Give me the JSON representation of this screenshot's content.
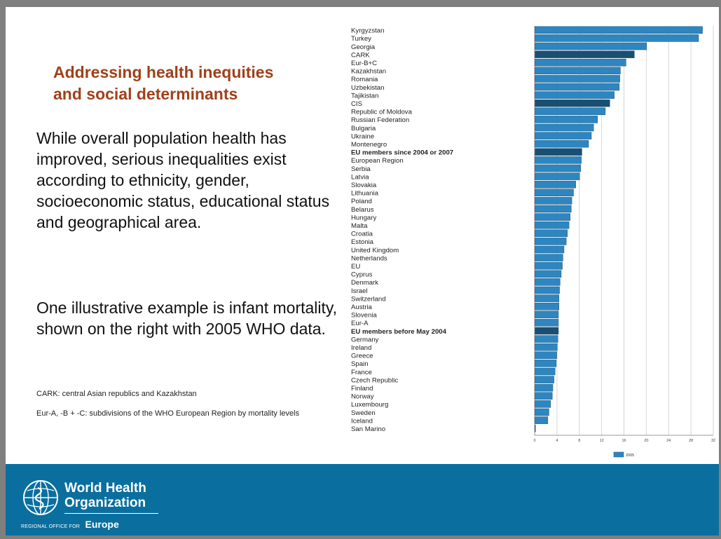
{
  "slide": {
    "title_lines": [
      "Addressing health inequities",
      "and social determinants"
    ],
    "paragraph1": "While overall population health has improved, serious inequalities exist according to ethnicity, gender, socioeconomic status, educational status and geographical area.",
    "paragraph2": "One illustrative example is infant mortality, shown on the right with 2005 WHO data.",
    "note1": "CARK: central Asian republics and Kazakhstan",
    "note2": "Eur-A, -B + -C: subdivisions of the WHO European Region by mortality levels"
  },
  "footer": {
    "org_line1": "World Health",
    "org_line2": "Organization",
    "region_small": "REGIONAL OFFICE FOR",
    "region_big": "Europe"
  },
  "colors": {
    "title": "#a0401b",
    "bar": "#2e86c1",
    "bar_aggregate": "#1b4f72",
    "footer": "#0a6f9e"
  },
  "chart_data": {
    "type": "bar",
    "orientation": "horizontal",
    "xlim": [
      0,
      32
    ],
    "x_ticks": [
      "0",
      "4",
      "8",
      "12",
      "16",
      "20",
      "24",
      "28",
      "32"
    ],
    "grid": true,
    "legend": {
      "position": "bottom",
      "entries": [
        "2005"
      ]
    },
    "categories": [
      "Kyrgyzstan",
      "Turkey",
      "Georgia",
      "CARK",
      "Eur-B+C",
      "Kazakhstan",
      "Romania",
      "Uzbekistan",
      "Tajikistan",
      "CIS",
      "Republic of Moldova",
      "Russian Federation",
      "Bulgaria",
      "Ukraine",
      "Montenegro",
      "EU members since 2004 or 2007",
      "European Region",
      "Serbia",
      "Latvia",
      "Slovakia",
      "Lithuania",
      "Poland",
      "Belarus",
      "Hungary",
      "Malta",
      "Croatia",
      "Estonia",
      "United Kingdom",
      "Netherlands",
      "EU",
      "Cyprus",
      "Denmark",
      "Israel",
      "Switzerland",
      "Austria",
      "Slovenia",
      "Eur-A",
      "EU members before May 2004",
      "Germany",
      "Ireland",
      "Greece",
      "Spain",
      "France",
      "Czech Republic",
      "Finland",
      "Norway",
      "Luxembourg",
      "Sweden",
      "Iceland",
      "San Marino"
    ],
    "values": [
      30,
      29.3,
      20,
      17.8,
      16.3,
      15.3,
      15.2,
      15.1,
      14.2,
      13.4,
      12.6,
      11.2,
      10.5,
      10.1,
      9.6,
      8.4,
      8.3,
      8.2,
      8.0,
      7.3,
      6.9,
      6.6,
      6.5,
      6.3,
      6.1,
      5.8,
      5.6,
      5.2,
      5.0,
      4.9,
      4.7,
      4.5,
      4.4,
      4.3,
      4.3,
      4.2,
      4.2,
      4.2,
      4.1,
      4.0,
      3.9,
      3.8,
      3.6,
      3.4,
      3.2,
      3.1,
      2.8,
      2.5,
      2.3,
      0.1
    ],
    "aggregates": [
      "CARK",
      "CIS",
      "EU members since 2004 or 2007",
      "EU members before May 2004"
    ],
    "bold_labels": [
      "EU members since 2004 or 2007",
      "EU members before May 2004"
    ]
  }
}
